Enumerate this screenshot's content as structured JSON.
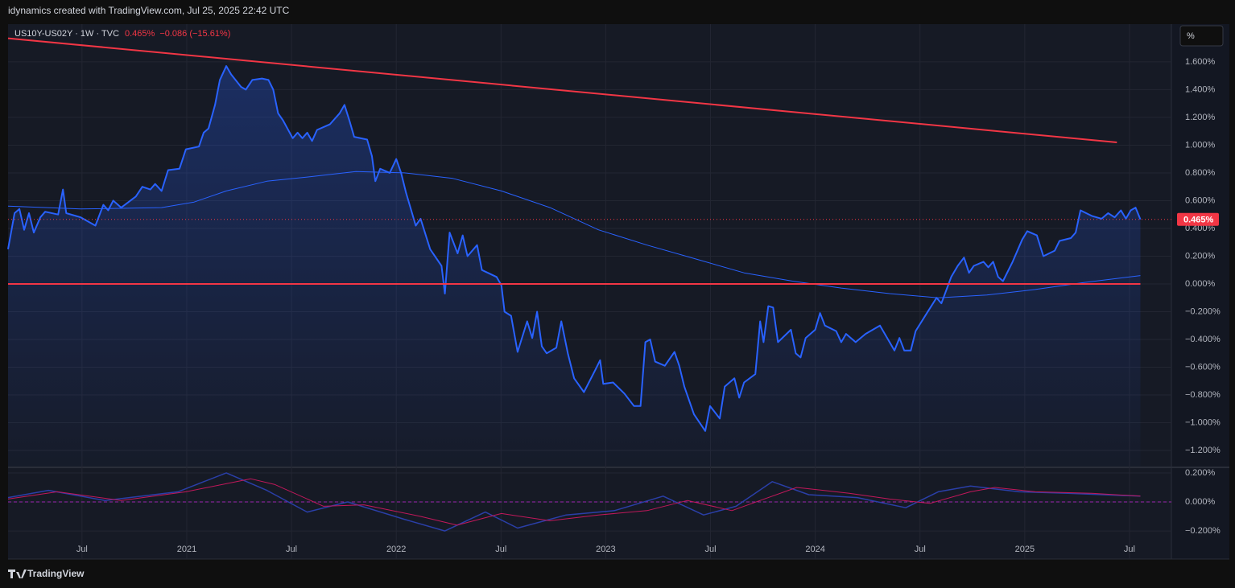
{
  "header": "idynamics created with TradingView.com, Jul 25, 2025 22:42 UTC",
  "brand": "TradingView",
  "unit_button": "%",
  "chart_data": [
    {
      "type": "line",
      "symbol": "US10Y-US02Y · 1W · TVC",
      "change": "−0.086 (−15.61%)",
      "price_line": {
        "value": 0.465,
        "label": "0.465%",
        "color": "#f23645"
      },
      "xlim": [
        2020.147,
        2025.7
      ],
      "xticks": [
        {
          "value": 2020.5,
          "label": "Jul"
        },
        2021,
        {
          "value": 2021.5,
          "label": "Jul"
        },
        2022,
        {
          "value": 2022.5,
          "label": "Jul"
        },
        2023,
        {
          "value": 2023.5,
          "label": "Jul"
        },
        2024,
        {
          "value": 2024.5,
          "label": "Jul"
        },
        2025,
        {
          "value": 2025.5,
          "label": "Jul"
        }
      ],
      "ylim": [
        -1.316,
        1.872
      ],
      "yticks": [
        {
          "value": 1.6,
          "label": "1.600%"
        },
        {
          "value": 1.4,
          "label": "1.400%"
        },
        {
          "value": 1.2,
          "label": "1.200%"
        },
        {
          "value": 1.0,
          "label": "1.000%"
        },
        {
          "value": 0.8,
          "label": "0.800%"
        },
        {
          "value": 0.6,
          "label": "0.600%"
        },
        {
          "value": 0.4,
          "label": "0.400%"
        },
        {
          "value": 0.2,
          "label": "0.200%"
        },
        {
          "value": 0,
          "label": "0.000%"
        },
        {
          "value": -0.2,
          "label": "−0.200%"
        },
        {
          "value": -0.4,
          "label": "−0.400%"
        },
        {
          "value": -0.6,
          "label": "−0.600%"
        },
        {
          "value": -0.8,
          "label": "−0.800%"
        },
        {
          "value": -1.0,
          "label": "−1.000%"
        },
        {
          "value": -1.2,
          "label": "−1.200%"
        }
      ],
      "grid": true,
      "series": [
        {
          "color": "#2962ff",
          "width": 2,
          "fill": true,
          "x": [
            2020.147,
            2020.178,
            2020.201,
            2020.224,
            2020.247,
            2020.27,
            2020.301,
            2020.324,
            2020.386,
            2020.409,
            2020.425,
            2020.494,
            2020.564,
            2020.602,
            2020.625,
            2020.649,
            2020.687,
            2020.757,
            2020.788,
            2020.826,
            2020.849,
            2020.88,
            2020.911,
            2020.965,
            2020.996,
            2021.058,
            2021.081,
            2021.104,
            2021.135,
            2021.158,
            2021.189,
            2021.212,
            2021.259,
            2021.282,
            2021.313,
            2021.359,
            2021.39,
            2021.413,
            2021.436,
            2021.459,
            2021.506,
            2021.529,
            2021.552,
            2021.575,
            2021.598,
            2021.622,
            2021.683,
            2021.73,
            2021.753,
            2021.776,
            2021.799,
            2021.861,
            2021.884,
            2021.9,
            2021.923,
            2021.969,
            2022.0,
            2022.023,
            2022.046,
            2022.093,
            2022.116,
            2022.162,
            2022.216,
            2022.232,
            2022.255,
            2022.293,
            2022.317,
            2022.34,
            2022.386,
            2022.409,
            2022.479,
            2022.502,
            2022.517,
            2022.548,
            2022.579,
            2022.625,
            2022.649,
            2022.672,
            2022.695,
            2022.718,
            2022.764,
            2022.788,
            2022.819,
            2022.849,
            2022.896,
            2022.95,
            2022.973,
            2022.988,
            2023.035,
            2023.089,
            2023.135,
            2023.166,
            2023.189,
            2023.212,
            2023.236,
            2023.282,
            2023.328,
            2023.351,
            2023.375,
            2023.421,
            2023.475,
            2023.498,
            2023.544,
            2023.568,
            2023.614,
            2023.637,
            2023.66,
            2023.714,
            2023.737,
            2023.753,
            2023.776,
            2023.799,
            2023.822,
            2023.884,
            2023.907,
            2023.93,
            2023.954,
            2024.0,
            2024.023,
            2024.046,
            2024.1,
            2024.124,
            2024.147,
            2024.193,
            2024.24,
            2024.309,
            2024.355,
            2024.378,
            2024.402,
            2024.425,
            2024.456,
            2024.479,
            2024.533,
            2024.579,
            2024.602,
            2024.649,
            2024.68,
            2024.71,
            2024.734,
            2024.757,
            2024.803,
            2024.826,
            2024.849,
            2024.873,
            2024.896,
            2024.942,
            2024.988,
            2025.012,
            2025.058,
            2025.089,
            2025.143,
            2025.166,
            2025.22,
            2025.243,
            2025.266,
            2025.32,
            2025.367,
            2025.398,
            2025.429,
            2025.459,
            2025.483,
            2025.506,
            2025.529,
            2025.552
          ],
          "values": [
            0.25,
            0.51,
            0.54,
            0.39,
            0.51,
            0.37,
            0.48,
            0.52,
            0.5,
            0.68,
            0.51,
            0.48,
            0.42,
            0.57,
            0.53,
            0.6,
            0.55,
            0.63,
            0.7,
            0.68,
            0.72,
            0.67,
            0.82,
            0.83,
            0.97,
            0.99,
            1.09,
            1.12,
            1.29,
            1.47,
            1.57,
            1.51,
            1.42,
            1.4,
            1.47,
            1.48,
            1.47,
            1.4,
            1.23,
            1.18,
            1.05,
            1.09,
            1.05,
            1.09,
            1.03,
            1.11,
            1.15,
            1.23,
            1.29,
            1.18,
            1.06,
            1.04,
            0.92,
            0.74,
            0.83,
            0.8,
            0.9,
            0.8,
            0.66,
            0.42,
            0.47,
            0.25,
            0.13,
            -0.07,
            0.37,
            0.22,
            0.35,
            0.2,
            0.28,
            0.1,
            0.05,
            -0.01,
            -0.2,
            -0.23,
            -0.49,
            -0.27,
            -0.39,
            -0.2,
            -0.45,
            -0.5,
            -0.46,
            -0.27,
            -0.5,
            -0.68,
            -0.78,
            -0.62,
            -0.55,
            -0.72,
            -0.71,
            -0.79,
            -0.88,
            -0.88,
            -0.42,
            -0.4,
            -0.56,
            -0.59,
            -0.49,
            -0.59,
            -0.74,
            -0.94,
            -1.06,
            -0.88,
            -0.97,
            -0.74,
            -0.68,
            -0.82,
            -0.71,
            -0.65,
            -0.27,
            -0.42,
            -0.16,
            -0.17,
            -0.42,
            -0.33,
            -0.5,
            -0.53,
            -0.39,
            -0.33,
            -0.21,
            -0.3,
            -0.34,
            -0.42,
            -0.36,
            -0.42,
            -0.36,
            -0.3,
            -0.42,
            -0.48,
            -0.39,
            -0.48,
            -0.48,
            -0.34,
            -0.21,
            -0.1,
            -0.14,
            0.05,
            0.13,
            0.19,
            0.08,
            0.13,
            0.16,
            0.12,
            0.16,
            0.05,
            0.02,
            0.16,
            0.32,
            0.38,
            0.35,
            0.2,
            0.24,
            0.31,
            0.33,
            0.37,
            0.53,
            0.49,
            0.47,
            0.51,
            0.48,
            0.53,
            0.47,
            0.53,
            0.55,
            0.465
          ]
        },
        {
          "color": "#2962ff",
          "width": 1,
          "x": [
            2020.147,
            2020.494,
            2020.88,
            2021.035,
            2021.189,
            2021.382,
            2021.575,
            2021.807,
            2022.039,
            2022.27,
            2022.502,
            2022.734,
            2022.965,
            2023.197,
            2023.429,
            2023.66,
            2023.892,
            2024.124,
            2024.355,
            2024.587,
            2024.819,
            2025.05,
            2025.282,
            2025.552
          ],
          "values": [
            0.56,
            0.54,
            0.55,
            0.59,
            0.67,
            0.74,
            0.77,
            0.81,
            0.8,
            0.76,
            0.67,
            0.55,
            0.39,
            0.28,
            0.18,
            0.08,
            0.02,
            -0.03,
            -0.07,
            -0.1,
            -0.08,
            -0.04,
            0.01,
            0.06
          ]
        },
        {
          "color": "#f23645",
          "width": 2,
          "x": [
            2020.147,
            2025.44
          ],
          "values": [
            1.77,
            1.02
          ]
        },
        {
          "color": "#f23645",
          "width": 2,
          "x": [
            2020.147,
            2025.552
          ],
          "values": [
            0,
            0
          ]
        }
      ]
    },
    {
      "type": "line",
      "xlim": [
        2020.147,
        2025.7
      ],
      "ylim": [
        -0.244,
        0.233
      ],
      "yticks": [
        {
          "value": 0.2,
          "label": "0.200%"
        },
        {
          "value": 0,
          "label": "0.000%"
        },
        {
          "value": -0.2,
          "label": "−0.200%"
        }
      ],
      "zero_line": {
        "value": 0,
        "color": "#9c27b0"
      },
      "grid": true,
      "series": [
        {
          "color": "#2a3fa8",
          "width": 1.5,
          "x": [
            2020.147,
            2020.34,
            2020.61,
            2020.958,
            2021.189,
            2021.382,
            2021.575,
            2021.768,
            2022.039,
            2022.232,
            2022.425,
            2022.579,
            2022.811,
            2023.042,
            2023.274,
            2023.467,
            2023.622,
            2023.795,
            2023.969,
            2024.201,
            2024.432,
            2024.587,
            2024.741,
            2024.973,
            2025.205,
            2025.552
          ],
          "values": [
            0.03,
            0.08,
            0.01,
            0.07,
            0.2,
            0.08,
            -0.07,
            0.0,
            -0.12,
            -0.2,
            -0.07,
            -0.18,
            -0.09,
            -0.06,
            0.04,
            -0.09,
            -0.03,
            0.14,
            0.05,
            0.03,
            -0.04,
            0.07,
            0.11,
            0.07,
            0.06,
            0.04
          ]
        },
        {
          "color": "#c2185b",
          "width": 1,
          "x": [
            2020.147,
            2020.382,
            2020.687,
            2020.996,
            2021.305,
            2021.421,
            2021.653,
            2021.846,
            2022.116,
            2022.29,
            2022.502,
            2022.734,
            2022.965,
            2023.197,
            2023.39,
            2023.602,
            2023.737,
            2023.911,
            2024.162,
            2024.355,
            2024.548,
            2024.741,
            2024.857,
            2025.05,
            2025.32,
            2025.552
          ],
          "values": [
            0.02,
            0.07,
            0.01,
            0.07,
            0.16,
            0.12,
            -0.03,
            -0.02,
            -0.1,
            -0.16,
            -0.08,
            -0.13,
            -0.09,
            -0.06,
            0.01,
            -0.06,
            0.01,
            0.1,
            0.06,
            0.02,
            -0.01,
            0.07,
            0.1,
            0.07,
            0.06,
            0.04
          ]
        }
      ]
    }
  ]
}
